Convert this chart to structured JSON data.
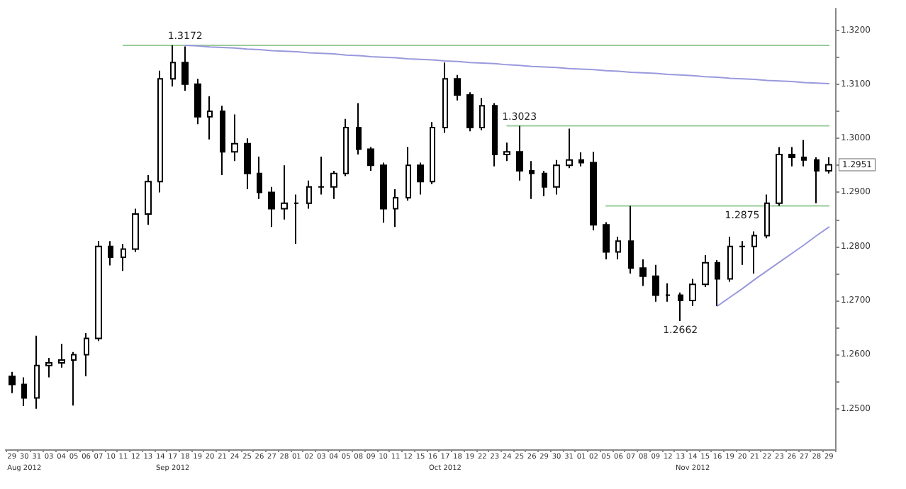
{
  "chart_data": {
    "type": "candlestick",
    "categories": [
      "29",
      "30",
      "31",
      "03",
      "04",
      "05",
      "06",
      "07",
      "10",
      "11",
      "12",
      "13",
      "14",
      "17",
      "18",
      "19",
      "20",
      "21",
      "24",
      "25",
      "26",
      "27",
      "28",
      "01",
      "02",
      "03",
      "04",
      "05",
      "08",
      "09",
      "10",
      "11",
      "12",
      "15",
      "16",
      "17",
      "18",
      "19",
      "22",
      "23",
      "24",
      "25",
      "26",
      "29",
      "30",
      "31",
      "01",
      "02",
      "05",
      "06",
      "07",
      "08",
      "09",
      "12",
      "13",
      "14",
      "15",
      "16",
      "19",
      "20",
      "21",
      "22",
      "23",
      "26",
      "27",
      "28",
      "29"
    ],
    "series": [
      {
        "type": "candlestick",
        "color": "#000000",
        "ohlc": [
          [
            1.256,
            1.2568,
            1.2529,
            1.2545
          ],
          [
            1.2545,
            1.2558,
            1.2505,
            1.252
          ],
          [
            1.252,
            1.2635,
            1.25,
            1.258
          ],
          [
            1.258,
            1.2594,
            1.2558,
            1.2585
          ],
          [
            1.2585,
            1.262,
            1.2576,
            1.259
          ],
          [
            1.259,
            1.2605,
            1.2506,
            1.26
          ],
          [
            1.26,
            1.264,
            1.256,
            1.263
          ],
          [
            1.263,
            1.281,
            1.2625,
            1.28
          ],
          [
            1.28,
            1.281,
            1.2765,
            1.278
          ],
          [
            1.278,
            1.2805,
            1.2755,
            1.2795
          ],
          [
            1.2795,
            1.287,
            1.279,
            1.286
          ],
          [
            1.286,
            1.2932,
            1.284,
            1.292
          ],
          [
            1.292,
            1.3125,
            1.29,
            1.311
          ],
          [
            1.311,
            1.3172,
            1.3096,
            1.314
          ],
          [
            1.314,
            1.317,
            1.3088,
            1.31
          ],
          [
            1.31,
            1.311,
            1.3026,
            1.304
          ],
          [
            1.304,
            1.3078,
            1.2998,
            1.305
          ],
          [
            1.305,
            1.306,
            1.2932,
            1.2975
          ],
          [
            1.2975,
            1.3044,
            1.2958,
            1.299
          ],
          [
            1.299,
            1.3,
            1.2906,
            1.2935
          ],
          [
            1.2935,
            1.2966,
            1.2888,
            1.29
          ],
          [
            1.29,
            1.291,
            1.2836,
            1.287
          ],
          [
            1.287,
            1.295,
            1.285,
            1.288
          ],
          [
            1.288,
            1.2896,
            1.2805,
            1.288
          ],
          [
            1.288,
            1.2922,
            1.287,
            1.291
          ],
          [
            1.291,
            1.2966,
            1.2896,
            1.291
          ],
          [
            1.291,
            1.294,
            1.2888,
            1.2935
          ],
          [
            1.2935,
            1.3036,
            1.293,
            1.302
          ],
          [
            1.302,
            1.3065,
            1.297,
            1.298
          ],
          [
            1.298,
            1.2984,
            1.294,
            1.295
          ],
          [
            1.295,
            1.2955,
            1.2844,
            1.287
          ],
          [
            1.287,
            1.2906,
            1.2836,
            1.289
          ],
          [
            1.289,
            1.2984,
            1.2885,
            1.295
          ],
          [
            1.295,
            1.2955,
            1.2896,
            1.292
          ],
          [
            1.292,
            1.303,
            1.2915,
            1.302
          ],
          [
            1.302,
            1.314,
            1.301,
            1.311
          ],
          [
            1.311,
            1.3117,
            1.307,
            1.308
          ],
          [
            1.308,
            1.3085,
            1.3013,
            1.302
          ],
          [
            1.302,
            1.3075,
            1.3015,
            1.306
          ],
          [
            1.306,
            1.3065,
            1.2948,
            1.297
          ],
          [
            1.297,
            1.2992,
            1.2958,
            1.2975
          ],
          [
            1.2975,
            1.3023,
            1.2922,
            1.294
          ],
          [
            1.294,
            1.2958,
            1.2888,
            1.2935
          ],
          [
            1.2935,
            1.294,
            1.2893,
            1.291
          ],
          [
            1.291,
            1.296,
            1.2896,
            1.295
          ],
          [
            1.295,
            1.3018,
            1.2945,
            1.296
          ],
          [
            1.296,
            1.2974,
            1.2948,
            1.2955
          ],
          [
            1.2955,
            1.2975,
            1.283,
            1.284
          ],
          [
            1.284,
            1.2845,
            1.2776,
            1.279
          ],
          [
            1.279,
            1.2818,
            1.2776,
            1.281
          ],
          [
            1.281,
            1.2875,
            1.275,
            1.276
          ],
          [
            1.276,
            1.2776,
            1.2727,
            1.2745
          ],
          [
            1.2745,
            1.2766,
            1.2698,
            1.271
          ],
          [
            1.271,
            1.2732,
            1.2698,
            1.271
          ],
          [
            1.271,
            1.2715,
            1.2662,
            1.27
          ],
          [
            1.27,
            1.274,
            1.269,
            1.273
          ],
          [
            1.273,
            1.2784,
            1.2725,
            1.277
          ],
          [
            1.277,
            1.2775,
            1.269,
            1.274
          ],
          [
            1.274,
            1.2818,
            1.2735,
            1.28
          ],
          [
            1.28,
            1.281,
            1.2766,
            1.28
          ],
          [
            1.28,
            1.2828,
            1.275,
            1.282
          ],
          [
            1.282,
            1.2896,
            1.2815,
            1.288
          ],
          [
            1.288,
            1.2984,
            1.2875,
            1.297
          ],
          [
            1.297,
            1.2984,
            1.2948,
            1.2965
          ],
          [
            1.2965,
            1.2997,
            1.2948,
            1.296
          ],
          [
            1.296,
            1.2965,
            1.288,
            1.294
          ],
          [
            1.294,
            1.2965,
            1.2935,
            1.2951
          ]
        ]
      },
      {
        "type": "line",
        "color": "#99cc99",
        "values": [
          null,
          null,
          null,
          null,
          null,
          null,
          null,
          null,
          null,
          1.3172,
          1.3172,
          1.3172,
          1.3172,
          1.3172,
          1.3172,
          1.3172,
          1.3172,
          1.3172,
          1.3172,
          1.3172,
          1.3172,
          1.3172,
          1.3172,
          1.3172,
          1.3172,
          1.3172,
          1.3172,
          1.3172,
          1.3172,
          1.3172,
          1.3172,
          1.3172,
          1.3172,
          1.3172,
          1.3172,
          1.3172,
          1.3172,
          1.3172,
          1.3172,
          1.3172,
          1.3172,
          1.3172,
          1.3172,
          1.3172,
          1.3172,
          1.3172,
          1.3172,
          1.3172,
          1.3172,
          1.3172,
          1.3172,
          1.3172,
          1.3172,
          1.3172,
          1.3172,
          1.3172,
          1.3172,
          1.3172,
          1.3172,
          1.3172,
          1.3172,
          1.3172,
          1.3172,
          1.3172,
          1.3172,
          1.3172,
          1.3172
        ]
      },
      {
        "type": "line",
        "color": "#99cc99",
        "values": [
          null,
          null,
          null,
          null,
          null,
          null,
          null,
          null,
          null,
          null,
          null,
          null,
          null,
          null,
          null,
          null,
          null,
          null,
          null,
          null,
          null,
          null,
          null,
          null,
          null,
          null,
          null,
          null,
          null,
          null,
          null,
          null,
          null,
          null,
          null,
          null,
          null,
          null,
          null,
          null,
          1.3023,
          1.3023,
          1.3023,
          1.3023,
          1.3023,
          1.3023,
          1.3023,
          1.3023,
          1.3023,
          1.3023,
          1.3023,
          1.3023,
          1.3023,
          1.3023,
          1.3023,
          1.3023,
          1.3023,
          1.3023,
          1.3023,
          1.3023,
          1.3023,
          1.3023,
          1.3023,
          1.3023,
          1.3023,
          1.3023,
          1.3023
        ]
      },
      {
        "type": "line",
        "color": "#99cc99",
        "values": [
          null,
          null,
          null,
          null,
          null,
          null,
          null,
          null,
          null,
          null,
          null,
          null,
          null,
          null,
          null,
          null,
          null,
          null,
          null,
          null,
          null,
          null,
          null,
          null,
          null,
          null,
          null,
          null,
          null,
          null,
          null,
          null,
          null,
          null,
          null,
          null,
          null,
          null,
          null,
          null,
          null,
          null,
          null,
          null,
          null,
          null,
          null,
          null,
          1.2875,
          1.2875,
          1.2875,
          1.2875,
          1.2875,
          1.2875,
          1.2875,
          1.2875,
          1.2875,
          1.2875,
          1.2875,
          1.2875,
          1.2875,
          1.2875,
          1.2875,
          1.2875,
          1.2875,
          1.2875,
          1.2875
        ]
      },
      {
        "type": "line",
        "color": "#9999dd",
        "values": [
          null,
          null,
          null,
          null,
          null,
          null,
          null,
          null,
          null,
          null,
          null,
          null,
          null,
          null,
          1.3172,
          1.3171,
          1.3169,
          1.3168,
          1.3167,
          1.3165,
          1.3164,
          1.3162,
          1.3161,
          1.316,
          1.3158,
          1.3157,
          1.3156,
          1.3154,
          1.3153,
          1.3151,
          1.315,
          1.3149,
          1.3147,
          1.3146,
          1.3145,
          1.3143,
          1.3142,
          1.314,
          1.3139,
          1.3138,
          1.3136,
          1.3135,
          1.3133,
          1.3132,
          1.3131,
          1.3129,
          1.3128,
          1.3127,
          1.3125,
          1.3124,
          1.3122,
          1.3121,
          1.312,
          1.3118,
          1.3117,
          1.3116,
          1.3114,
          1.3113,
          1.3111,
          1.311,
          1.3109,
          1.3107,
          1.3106,
          1.3105,
          1.3103,
          1.3102,
          1.3101
        ]
      },
      {
        "type": "line",
        "color": "#9999dd",
        "values": [
          null,
          null,
          null,
          null,
          null,
          null,
          null,
          null,
          null,
          null,
          null,
          null,
          null,
          null,
          null,
          null,
          null,
          null,
          null,
          null,
          null,
          null,
          null,
          null,
          null,
          null,
          null,
          null,
          null,
          null,
          null,
          null,
          null,
          null,
          null,
          null,
          null,
          null,
          null,
          null,
          null,
          null,
          null,
          null,
          null,
          null,
          null,
          null,
          null,
          null,
          null,
          null,
          null,
          null,
          null,
          null,
          null,
          1.269,
          1.2706,
          1.2722,
          1.2739,
          1.2755,
          1.2771,
          1.2787,
          1.2803,
          1.282,
          1.2836
        ]
      }
    ],
    "marker": "none",
    "line_style": "solid",
    "ylim": [
      1.2425,
      1.324
    ],
    "yticks": [
      {
        "value": 1.25,
        "label": "1.2500"
      },
      {
        "value": 1.255,
        "label": null
      },
      {
        "value": 1.26,
        "label": "1.2600"
      },
      {
        "value": 1.265,
        "label": null
      },
      {
        "value": 1.27,
        "label": "1.2700"
      },
      {
        "value": 1.275,
        "label": null
      },
      {
        "value": 1.28,
        "label": "1.2800"
      },
      {
        "value": 1.285,
        "label": null
      },
      {
        "value": 1.29,
        "label": "1.2900"
      },
      {
        "value": 1.295,
        "label": null
      },
      {
        "value": 1.3,
        "label": "1.3000"
      },
      {
        "value": 1.305,
        "label": null
      },
      {
        "value": 1.31,
        "label": "1.3100"
      },
      {
        "value": 1.315,
        "label": null
      },
      {
        "value": 1.32,
        "label": "1.3200"
      }
    ],
    "annotations": [
      "1.3172",
      "1.3023",
      "1.2875",
      "1.2662",
      "1.2951",
      "Aug 2012",
      "Sep 2012",
      "Oct 2012",
      "Nov 2012"
    ]
  }
}
